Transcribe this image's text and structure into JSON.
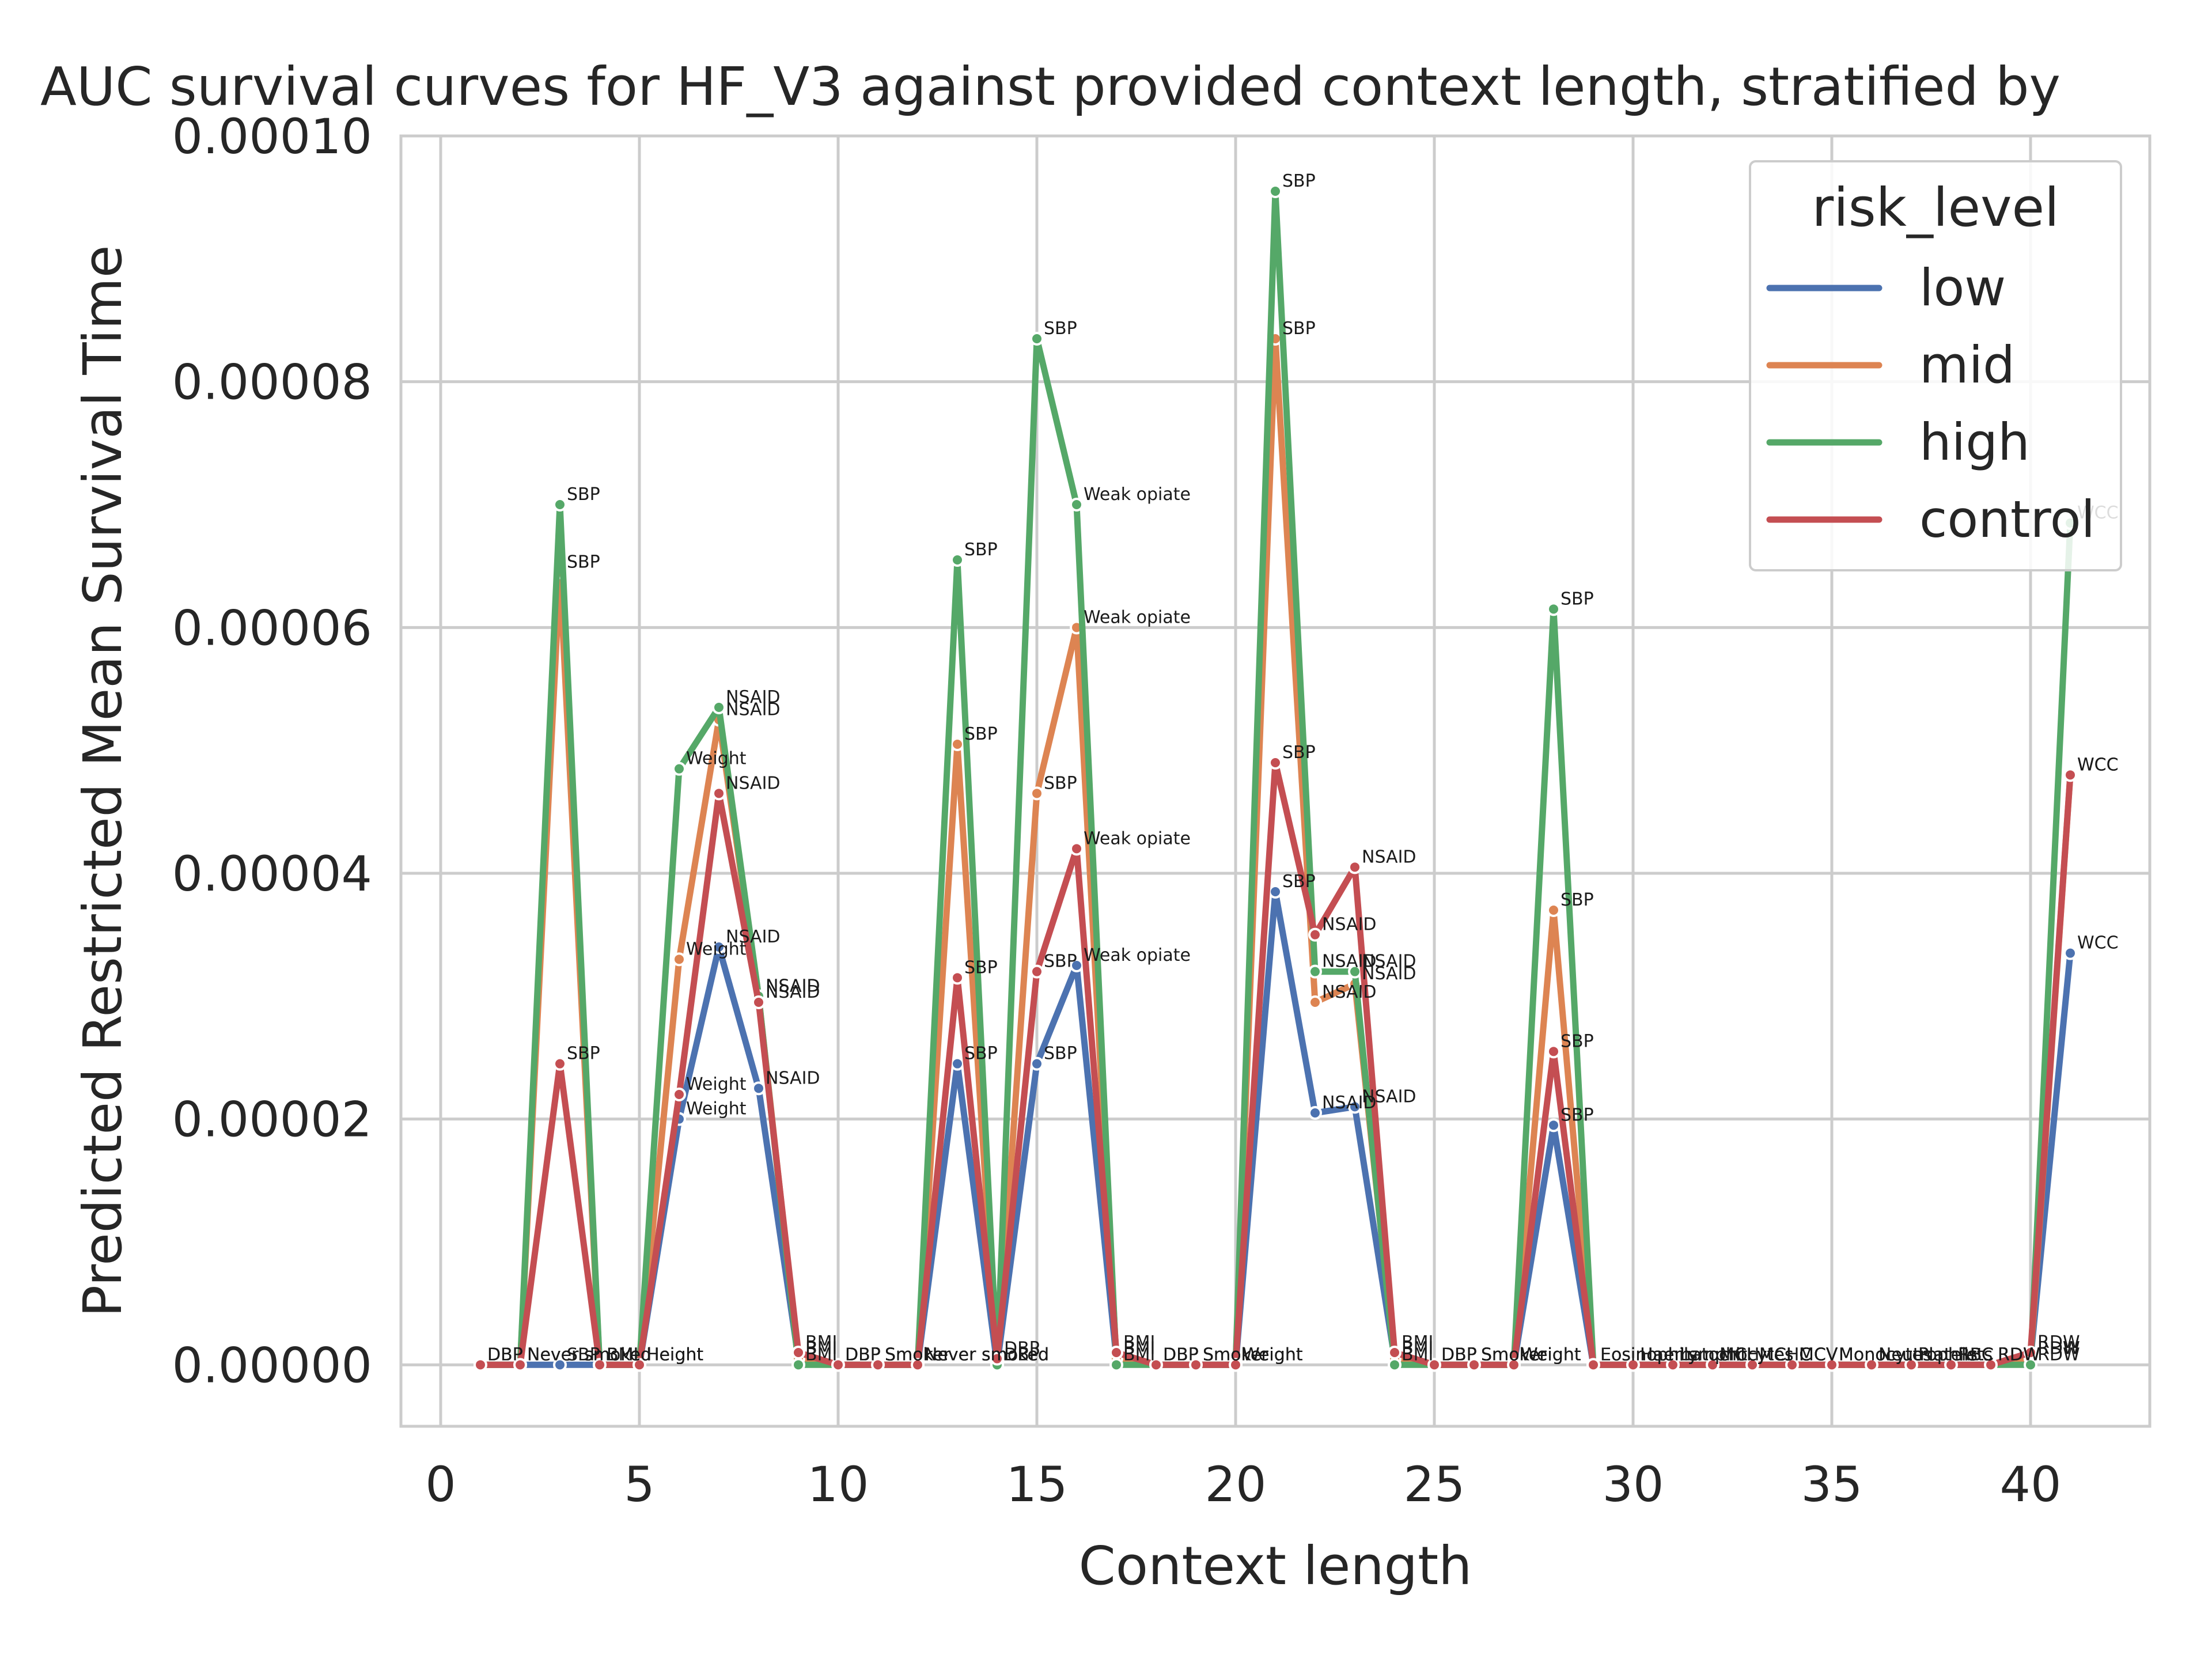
{
  "chart_data": {
    "type": "line",
    "title": "AUC survival curves for HF_V3 against provided context length, stratified by",
    "xlabel": "Context length",
    "ylabel": "Predicted Restricted Mean Survival Time",
    "xlim": [
      -1,
      43
    ],
    "ylim": [
      -5e-06,
      0.0001
    ],
    "xticks": [
      0,
      5,
      10,
      15,
      20,
      25,
      30,
      35,
      40
    ],
    "yticks": [
      0.0,
      2e-05,
      4e-05,
      6e-05,
      8e-05,
      0.0001
    ],
    "ytick_labels": [
      "0.00000",
      "0.00002",
      "0.00004",
      "0.00006",
      "0.00008",
      "0.00010"
    ],
    "grid": true,
    "legend": {
      "title": "risk_level",
      "placement": "top-right"
    },
    "x": [
      1,
      2,
      3,
      4,
      5,
      6,
      7,
      8,
      9,
      10,
      11,
      12,
      13,
      14,
      15,
      16,
      17,
      18,
      19,
      20,
      21,
      22,
      23,
      24,
      25,
      26,
      27,
      28,
      29,
      30,
      31,
      32,
      33,
      34,
      35,
      36,
      37,
      38,
      39,
      40,
      41
    ],
    "labels": [
      "DBP",
      "Never smoked",
      "SBP",
      "BMI",
      "Height",
      "Weight",
      "NSAID",
      "NSAID",
      "BMI",
      "DBP",
      "Smoker",
      "Never smoked",
      "SBP",
      "DBP",
      "SBP",
      "Weak opiate",
      "BMI",
      "DBP",
      "Smoker",
      "Weight",
      "SBP",
      "NSAID",
      "NSAID",
      "BMI",
      "DBP",
      "Smoker",
      "Weight",
      "SBP",
      "Eosinophils",
      "Haematocrit",
      "Lymphocytes",
      "MCH",
      "MCHC",
      "MCV",
      "Monocytes",
      "Neutrophils",
      "Platelets",
      "RBC",
      "RDW",
      "RDW",
      "WCC"
    ],
    "series": [
      {
        "name": "low",
        "color": "#4c72b0",
        "values": [
          0,
          0,
          0,
          0,
          0,
          2e-05,
          3.4e-05,
          2.25e-05,
          5e-07,
          0,
          0,
          0,
          2.45e-05,
          0,
          2.45e-05,
          3.25e-05,
          5e-07,
          0,
          0,
          0,
          3.85e-05,
          2.05e-05,
          2.1e-05,
          5e-07,
          0,
          0,
          0,
          1.95e-05,
          0,
          0,
          0,
          0,
          0,
          0,
          0,
          0,
          0,
          0,
          0,
          5e-07,
          3.35e-05
        ]
      },
      {
        "name": "mid",
        "color": "#dd8452",
        "values": [
          0,
          0,
          6.45e-05,
          0,
          0,
          3.3e-05,
          5.25e-05,
          3e-05,
          5e-07,
          0,
          0,
          0,
          5.05e-05,
          0,
          4.65e-05,
          6e-05,
          5e-07,
          0,
          0,
          0,
          8.35e-05,
          2.95e-05,
          3.1e-05,
          5e-07,
          0,
          0,
          0,
          3.7e-05,
          0,
          0,
          0,
          0,
          0,
          0,
          0,
          0,
          0,
          0,
          0,
          5e-07,
          4.8e-05
        ]
      },
      {
        "name": "high",
        "color": "#55a868",
        "values": [
          0,
          0,
          7e-05,
          0,
          0,
          4.85e-05,
          5.35e-05,
          3e-05,
          0,
          0,
          0,
          0,
          6.55e-05,
          0,
          8.35e-05,
          7e-05,
          0,
          0,
          0,
          0,
          9.55e-05,
          3.2e-05,
          3.2e-05,
          0,
          0,
          0,
          0,
          6.15e-05,
          0,
          0,
          0,
          0,
          0,
          0,
          0,
          0,
          0,
          0,
          0,
          0,
          6.85e-05
        ]
      },
      {
        "name": "control",
        "color": "#c44e52",
        "values": [
          0,
          0,
          2.45e-05,
          0,
          0,
          2.2e-05,
          4.65e-05,
          2.95e-05,
          1e-06,
          0,
          0,
          0,
          3.15e-05,
          5e-07,
          3.2e-05,
          4.2e-05,
          1e-06,
          0,
          0,
          0,
          4.9e-05,
          3.5e-05,
          4.05e-05,
          1e-06,
          0,
          0,
          0,
          2.55e-05,
          0,
          0,
          0,
          0,
          0,
          0,
          0,
          0,
          0,
          0,
          0,
          1e-06,
          4.8e-05
        ]
      }
    ],
    "legend_order": [
      "low",
      "mid",
      "high",
      "control"
    ]
  }
}
